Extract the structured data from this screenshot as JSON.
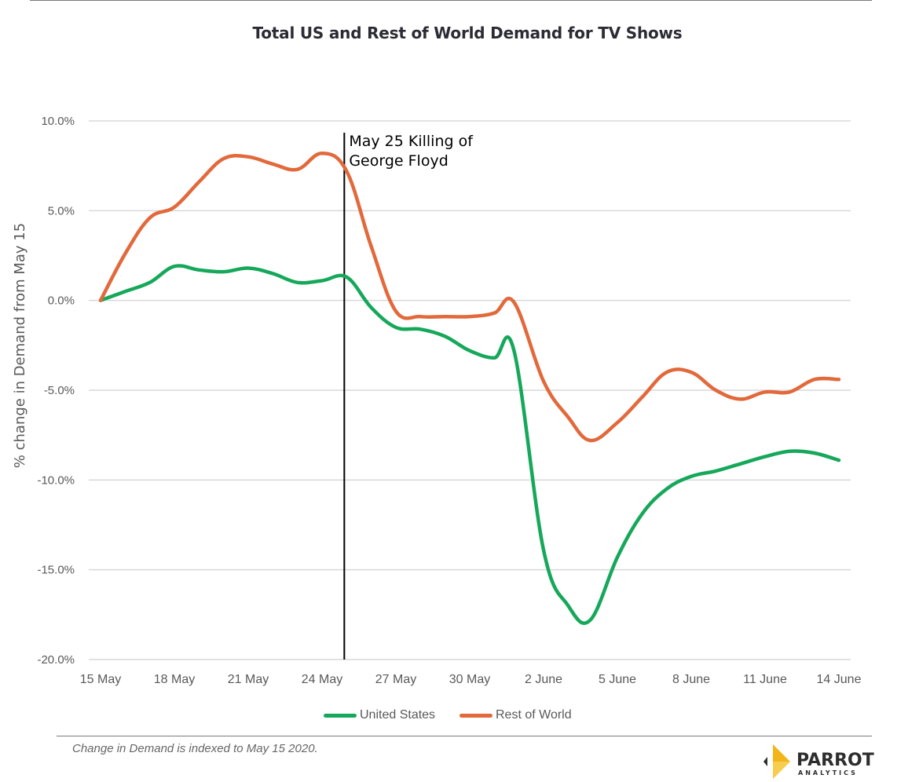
{
  "chart_data": {
    "type": "line",
    "title": "Total US and Rest of World Demand for TV Shows",
    "xlabel": "",
    "ylabel": "% change in Demand from May 15",
    "ylim": [
      -20,
      10
    ],
    "yticks": [
      10,
      5,
      0,
      -5,
      -10,
      -15,
      -20
    ],
    "ytick_labels": [
      "10.0%",
      "5.0%",
      "0.0%",
      "-5.0%",
      "-10.0%",
      "-15.0%",
      "-20.0%"
    ],
    "xrange_days": [
      0,
      30
    ],
    "xtick_days": [
      0,
      3,
      6,
      9,
      12,
      15,
      18,
      21,
      24,
      27,
      30
    ],
    "xtick_labels": [
      "15 May",
      "18 May",
      "21 May",
      "24 May",
      "27 May",
      "30 May",
      "2 June",
      "5 June",
      "8 June",
      "11 June",
      "14 June"
    ],
    "grid": "horizontal",
    "legend_position": "bottom",
    "x_days": [
      0,
      1,
      2,
      3,
      4,
      5,
      6,
      7,
      8,
      9,
      10,
      11,
      12,
      13,
      14,
      15,
      16,
      16.8,
      18,
      19,
      19.9,
      21,
      22,
      23,
      24,
      25,
      26,
      27,
      28,
      29,
      30
    ],
    "series": [
      {
        "name": "United States",
        "color": "#16a85a",
        "values": [
          0.0,
          0.5,
          1.0,
          1.9,
          1.7,
          1.6,
          1.8,
          1.5,
          1.0,
          1.1,
          1.3,
          -0.4,
          -1.5,
          -1.6,
          -2.0,
          -2.8,
          -3.2,
          -2.8,
          -13.9,
          -17.0,
          -17.8,
          -14.3,
          -11.9,
          -10.5,
          -9.8,
          -9.5,
          -9.1,
          -8.7,
          -8.4,
          -8.5,
          -8.9
        ]
      },
      {
        "name": "Rest of World",
        "color": "#e2693b",
        "values": [
          0.0,
          2.6,
          4.6,
          5.2,
          6.6,
          7.9,
          8.0,
          7.6,
          7.3,
          8.2,
          7.2,
          3.0,
          -0.6,
          -0.9,
          -0.9,
          -0.9,
          -0.7,
          -0.1,
          -4.5,
          -6.5,
          -7.8,
          -6.8,
          -5.4,
          -4.0,
          -4.0,
          -5.0,
          -5.5,
          -5.1,
          -5.1,
          -4.4,
          -4.4
        ]
      }
    ],
    "annotation": {
      "day": 10,
      "lines": [
        "May 25 Killing of",
        "George Floyd"
      ]
    }
  },
  "footnote": "Change in Demand is indexed to May 15 2020.",
  "logo": {
    "name": "PARROT",
    "sub": "ANALYTICS",
    "accent": "#f2b51b"
  }
}
